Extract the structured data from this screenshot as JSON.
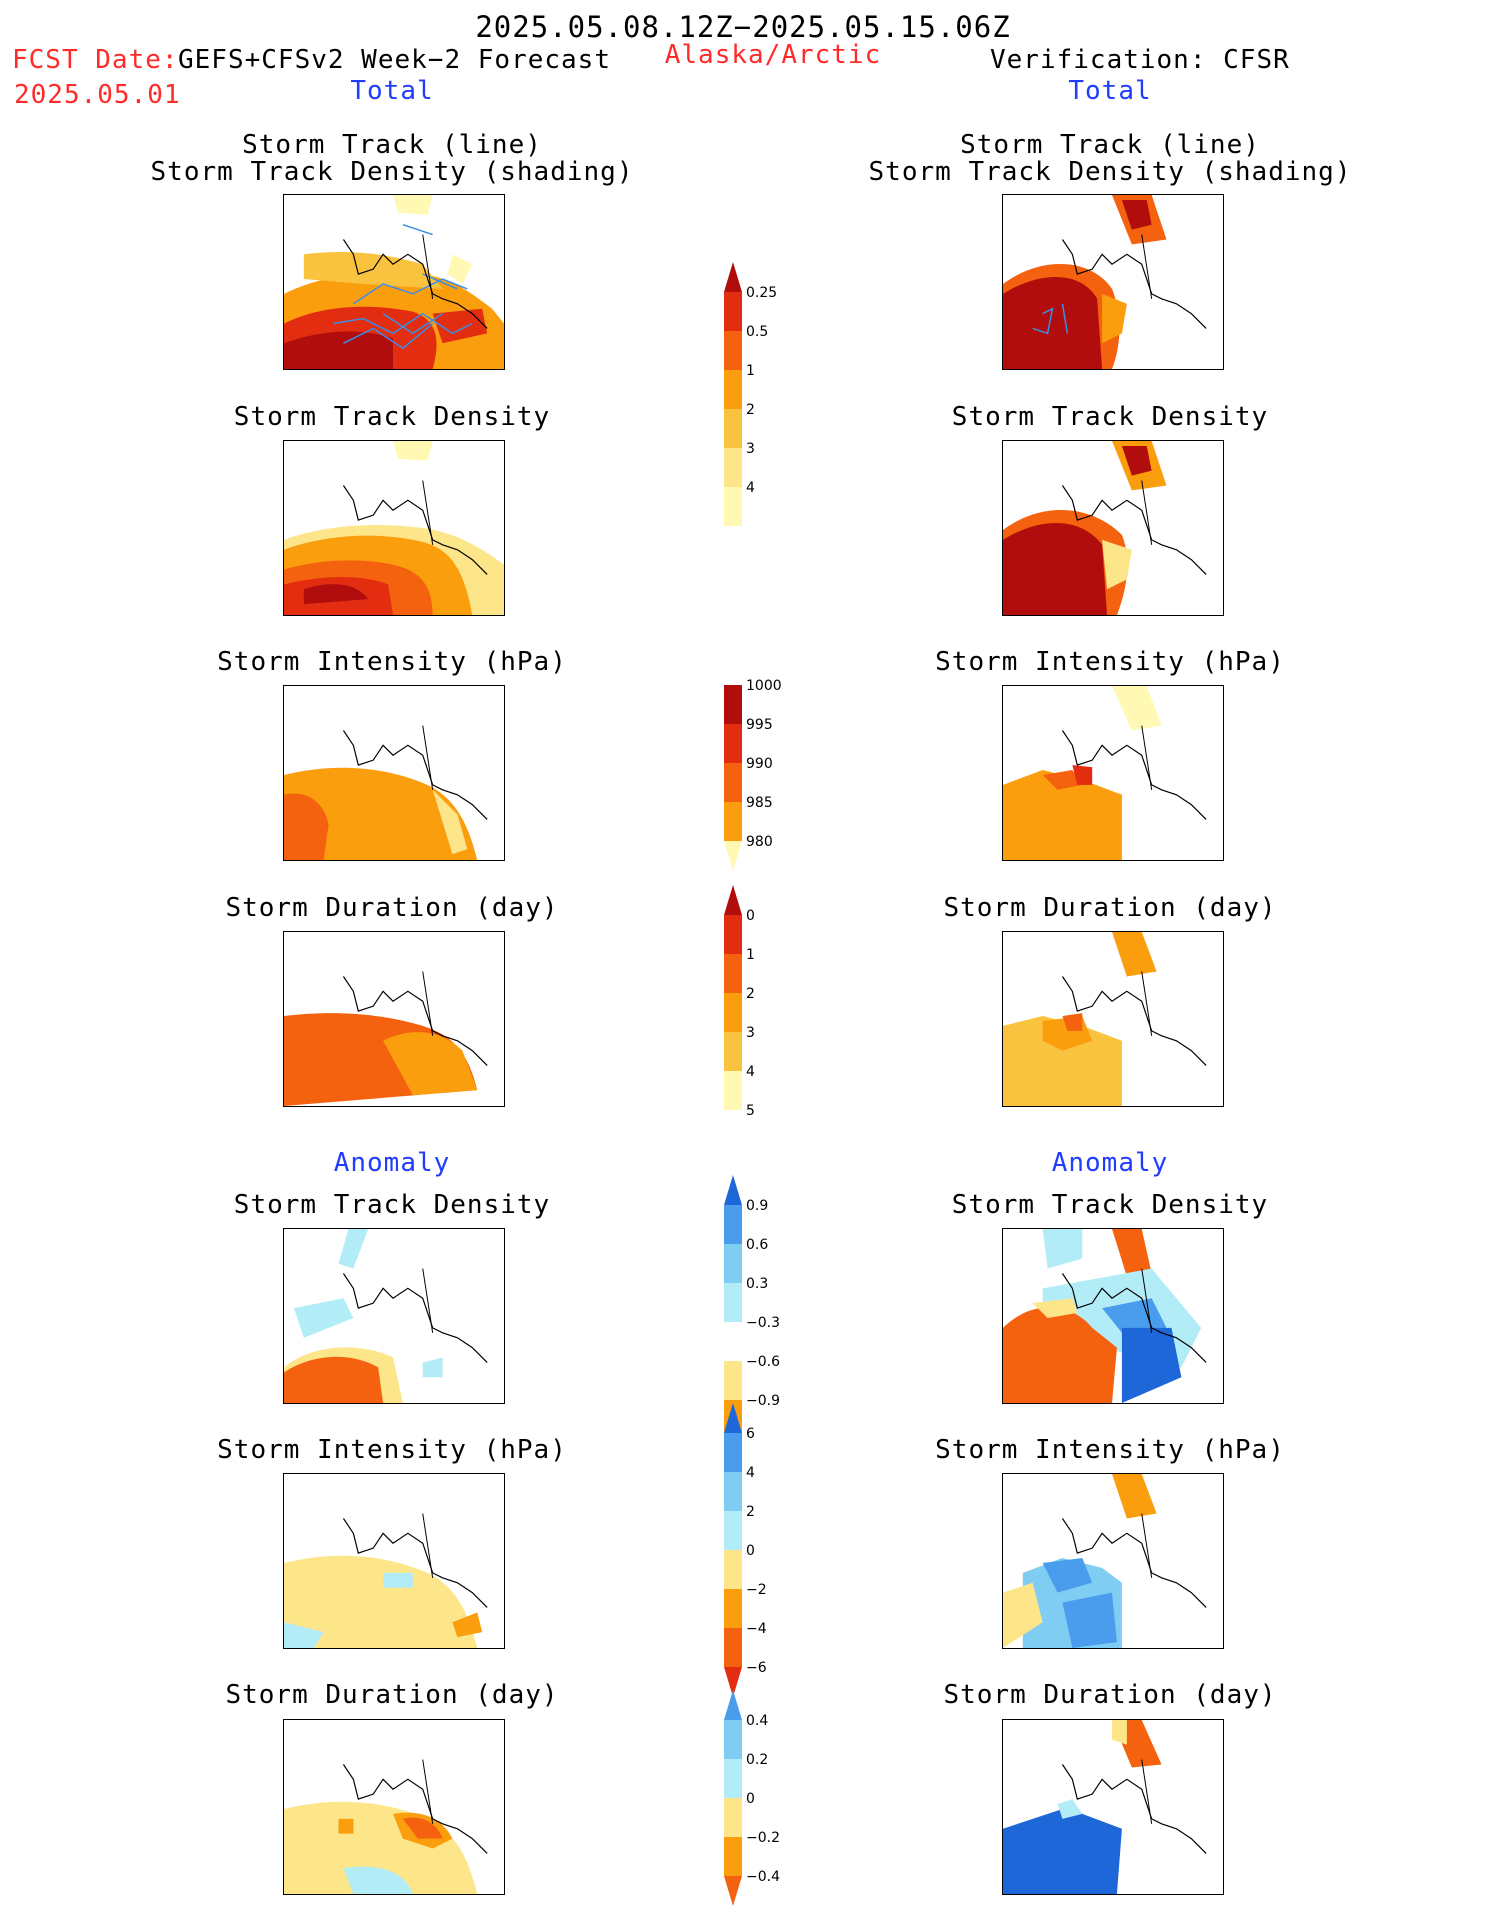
{
  "header": {
    "period": "2025.05.08.12Z−2025.05.15.06Z",
    "fcst_date_label": "FCST Date:",
    "model_label": "GEFS+CFSv2 Week−2 Forecast",
    "fcst_date": "2025.05.01",
    "region": "Alaska/Arctic",
    "verification": "Verification: CFSR"
  },
  "left": {
    "total_label": "Total",
    "anomaly_label": "Anomaly",
    "titles": {
      "track_line": "Storm Track (line)",
      "track_shading": "Storm Track Density (shading)",
      "density": "Storm Track Density",
      "intensity": "Storm Intensity (hPa)",
      "duration": "Storm Duration (day)",
      "anom_density": "Storm Track Density",
      "anom_intensity": "Storm Intensity (hPa)",
      "anom_duration": "Storm Duration (day)"
    }
  },
  "right": {
    "total_label": "Total",
    "anomaly_label": "Anomaly",
    "titles": {
      "track_line": "Storm Track (line)",
      "track_shading": "Storm Track Density (shading)",
      "density": "Storm Track Density",
      "intensity": "Storm Intensity (hPa)",
      "duration": "Storm Duration (day)",
      "anom_density": "Storm Track Density",
      "anom_intensity": "Storm Intensity (hPa)",
      "anom_duration": "Storm Duration (day)"
    }
  },
  "colors": {
    "c_y1": "#fff9b4",
    "c_y2": "#fde58a",
    "c_y3": "#f9c33f",
    "c_o1": "#fb9e0e",
    "c_o2": "#f5620f",
    "c_r1": "#e22d11",
    "c_r2": "#b20d0d",
    "c_b1": "#b2ecf7",
    "c_b2": "#7fcdf2",
    "c_b3": "#4a9ded",
    "c_b4": "#1e67d8",
    "track_line": "#3a8ee8"
  },
  "chart_data": [
    {
      "type": "colorbar",
      "name": "track_density",
      "ticks": [
        "0.25",
        "0.5",
        "1",
        "2",
        "3",
        "4"
      ],
      "colors": [
        "#fff9b4",
        "#fde58a",
        "#f9c33f",
        "#fb9e0e",
        "#f5620f",
        "#e22d11",
        "#b20d0d"
      ]
    },
    {
      "type": "colorbar",
      "name": "intensity",
      "ticks": [
        "1000",
        "995",
        "990",
        "985",
        "980"
      ],
      "colors": [
        "#fff9b4",
        "#fb9e0e",
        "#f5620f",
        "#e22d11",
        "#b20d0d"
      ]
    },
    {
      "type": "colorbar",
      "name": "duration",
      "ticks": [
        "0",
        "1",
        "2",
        "3",
        "4",
        "5"
      ],
      "colors": [
        "#fff9b4",
        "#f9c33f",
        "#fb9e0e",
        "#f5620f",
        "#e22d11",
        "#b20d0d"
      ]
    },
    {
      "type": "colorbar",
      "name": "anom_density",
      "ticks": [
        "0.9",
        "0.6",
        "0.3",
        "−0.3",
        "−0.6",
        "−0.9"
      ],
      "colors": [
        "#f5620f",
        "#fb9e0e",
        "#fde58a",
        "#ffffff",
        "#b2ecf7",
        "#7fcdf2",
        "#4a9ded",
        "#1e67d8"
      ]
    },
    {
      "type": "colorbar",
      "name": "anom_intensity",
      "ticks": [
        "6",
        "4",
        "2",
        "0",
        "−2",
        "−4",
        "−6"
      ],
      "colors": [
        "#e22d11",
        "#f5620f",
        "#fb9e0e",
        "#fde58a",
        "#b2ecf7",
        "#7fcdf2",
        "#4a9ded",
        "#1e67d8"
      ]
    },
    {
      "type": "colorbar",
      "name": "anom_duration",
      "ticks": [
        "0.4",
        "0.2",
        "0",
        "−0.2",
        "−0.4"
      ],
      "colors": [
        "#f5620f",
        "#fb9e0e",
        "#fde58a",
        "#b2ecf7",
        "#7fcdf2",
        "#4a9ded"
      ]
    }
  ]
}
